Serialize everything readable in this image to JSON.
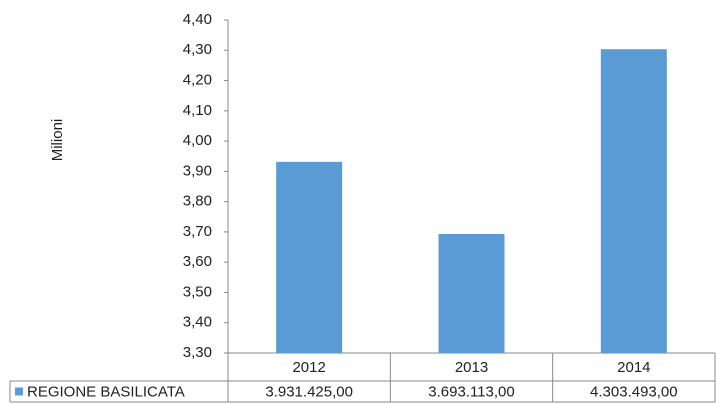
{
  "chart_data": {
    "type": "bar",
    "y_label": "Milioni",
    "categories": [
      "2012",
      "2013",
      "2014"
    ],
    "series": [
      {
        "name": "REGIONE BASILICATA",
        "color": "#5b9bd5",
        "values": [
          3.931425,
          3.693113,
          4.303493
        ],
        "value_labels": [
          "3.931.425,00",
          "3.693.113,00",
          "4.303.493,00"
        ]
      }
    ],
    "ylim": [
      3.3,
      4.4
    ],
    "yticks": [
      {
        "value": 3.3,
        "label": "3,30"
      },
      {
        "value": 3.4,
        "label": "3,40"
      },
      {
        "value": 3.5,
        "label": "3,50"
      },
      {
        "value": 3.6,
        "label": "3,60"
      },
      {
        "value": 3.7,
        "label": "3,70"
      },
      {
        "value": 3.8,
        "label": "3,80"
      },
      {
        "value": 3.9,
        "label": "3,90"
      },
      {
        "value": 4.0,
        "label": "4,00"
      },
      {
        "value": 4.1,
        "label": "4,10"
      },
      {
        "value": 4.2,
        "label": "4,20"
      },
      {
        "value": 4.3,
        "label": "4,30"
      },
      {
        "value": 4.4,
        "label": "4,40"
      }
    ],
    "grid": false
  }
}
